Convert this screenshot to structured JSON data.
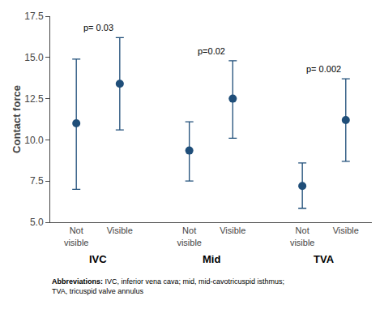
{
  "chart_data": {
    "type": "scatter",
    "ylabel": "Contact force",
    "ylim": [
      5.0,
      17.5
    ],
    "yticks": [
      {
        "value": 5.0,
        "label": "5.0"
      },
      7.5,
      {
        "value": 10.0,
        "label": "10.0"
      },
      12.5,
      {
        "value": 15.0,
        "label": "15.0"
      },
      17.5
    ],
    "grid": false,
    "color": "#1F4E79",
    "groups": [
      {
        "label": "IVC",
        "p_value": "p= 0.03",
        "points": [
          {
            "category": "Not\nvisible",
            "mean": 11.0,
            "ci_low": 7.0,
            "ci_high": 14.9
          },
          {
            "category": "Visible",
            "mean": 13.4,
            "ci_low": 10.6,
            "ci_high": 16.2
          }
        ]
      },
      {
        "label": "Mid",
        "p_value": "p=0.02",
        "points": [
          {
            "category": "Not\nvisible",
            "mean": 9.35,
            "ci_low": 7.5,
            "ci_high": 11.1
          },
          {
            "category": "Visible",
            "mean": 12.5,
            "ci_low": 10.1,
            "ci_high": 14.8
          }
        ]
      },
      {
        "label": "TVA",
        "p_value": "p= 0.002",
        "points": [
          {
            "category": "Not\nvisible",
            "mean": 7.2,
            "ci_low": 5.85,
            "ci_high": 8.6
          },
          {
            "category": "Visible",
            "mean": 11.2,
            "ci_low": 8.7,
            "ci_high": 13.7
          }
        ]
      }
    ],
    "footnote": {
      "bold": "Abbreviations:",
      "text": "IVC, inferior vena cava; mid, mid-cavotricuspid isthmus;\nTVA, tricuspid valve annulus"
    }
  }
}
